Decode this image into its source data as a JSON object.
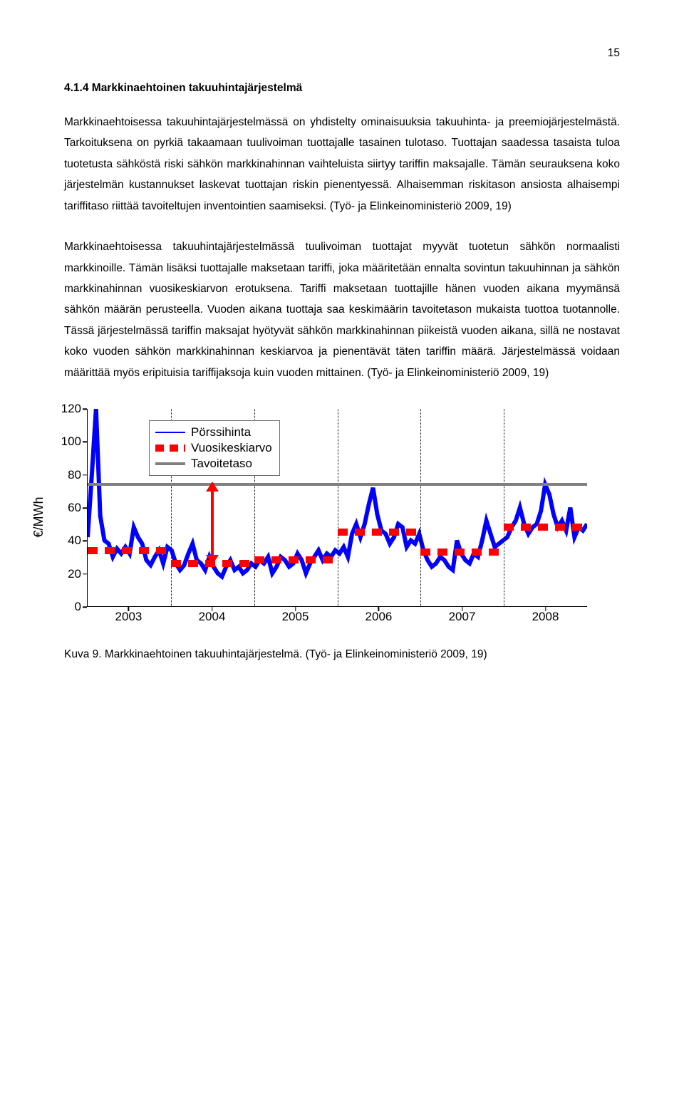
{
  "page_number": "15",
  "heading": "4.1.4  Markkinaehtoinen takuuhintajärjestelmä",
  "para1": "Markkinaehtoisessa takuuhintajärjestelmässä on yhdistelty ominaisuuksia takuuhinta- ja preemiojärjestelmästä. Tarkoituksena on pyrkiä takaamaan tuulivoiman tuottajalle tasainen tulotaso. Tuottajan saadessa tasaista tuloa tuotetusta sähköstä riski sähkön markkinahinnan vaihteluista siirtyy tariffin maksajalle. Tämän seurauksena koko järjestelmän kustannukset laskevat tuottajan riskin pienentyessä. Alhaisemman riskitason ansiosta alhaisempi tariffitaso riittää tavoiteltujen inventointien saamiseksi. (Työ- ja Elinkeinoministeriö 2009, 19)",
  "para2": "Markkinaehtoisessa takuuhintajärjestelmässä tuulivoiman tuottajat myyvät tuotetun sähkön normaalisti markkinoille. Tämän lisäksi tuottajalle maksetaan tariffi, joka määritetään ennalta sovintun takuuhinnan ja sähkön markkinahinnan vuosikeskiarvon erotuksena. Tariffi maksetaan tuottajille hänen vuoden aikana myymänsä sähkön määrän perusteella. Vuoden aikana tuottaja saa keskimäärin tavoitetason mukaista tuottoa tuotannolle. Tässä järjestelmässä tariffin maksajat hyötyvät sähkön markkinahinnan piikeistä vuoden aikana, sillä ne nostavat koko vuoden sähkön markkinahinnan keskiarvoa ja pienentävät täten tariffin määrä. Järjestelmässä voidaan määrittää myös eripituisia tariffijaksoja kuin vuoden mittainen. (Työ- ja Elinkeinoministeriö 2009, 19)",
  "caption": "Kuva 9. Markkinaehtoinen takuuhintajärjestelmä. (Työ- ja Elinkeinoministeriö 2009, 19)",
  "chart": {
    "type": "line",
    "ylabel": "€/MWh",
    "ylim": [
      0,
      120
    ],
    "yticks": [
      0,
      20,
      40,
      60,
      80,
      100,
      120
    ],
    "years": [
      "2003",
      "2004",
      "2005",
      "2006",
      "2007",
      "2008"
    ],
    "year_boundaries_pct": [
      0,
      16.67,
      33.33,
      50,
      66.67,
      83.33,
      100
    ],
    "year_centers_pct": [
      8.33,
      25,
      41.67,
      58.33,
      75,
      91.67
    ],
    "series_color": "#0000ff",
    "avg_color": "#ff0000",
    "target_color": "#808080",
    "target_value": 75,
    "yearly_avg": [
      34,
      26,
      28,
      45,
      33,
      48
    ],
    "arrow_year_index": 1,
    "legend": [
      {
        "label": "Pörssihinta",
        "color": "#0000ff",
        "style": "line"
      },
      {
        "label": "Vuosikeskiarvo",
        "color": "#ff0000",
        "style": "dash"
      },
      {
        "label": "Tavoitetaso",
        "color": "#808080",
        "style": "thick"
      }
    ],
    "spot_series": [
      42,
      80,
      120,
      55,
      40,
      38,
      30,
      35,
      32,
      36,
      32,
      48,
      42,
      38,
      28,
      25,
      30,
      34,
      26,
      36,
      34,
      26,
      22,
      25,
      32,
      38,
      28,
      26,
      22,
      30,
      24,
      20,
      18,
      24,
      28,
      22,
      24,
      20,
      22,
      26,
      24,
      28,
      26,
      30,
      20,
      24,
      30,
      28,
      24,
      26,
      32,
      28,
      20,
      26,
      30,
      34,
      28,
      32,
      30,
      34,
      32,
      36,
      30,
      44,
      50,
      42,
      50,
      62,
      72,
      56,
      46,
      44,
      38,
      42,
      50,
      48,
      36,
      40,
      38,
      44,
      34,
      28,
      24,
      26,
      30,
      28,
      24,
      22,
      40,
      32,
      28,
      26,
      32,
      30,
      40,
      52,
      44,
      36,
      38,
      40,
      42,
      48,
      52,
      60,
      50,
      44,
      48,
      50,
      58,
      74,
      68,
      56,
      48,
      52,
      46,
      60,
      42,
      48,
      46,
      50
    ]
  }
}
